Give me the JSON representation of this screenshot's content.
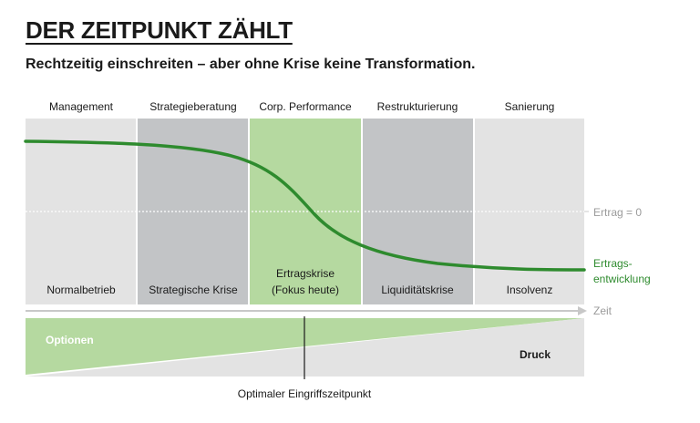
{
  "title": "DER ZEITPUNKT ZÄHLT",
  "subtitle": "Rechtzeitig einschreiten – aber ohne Krise keine Transformation.",
  "columns": [
    {
      "header": "Management",
      "footer": [
        "Normalbetrieb"
      ],
      "fill": "#e3e3e3"
    },
    {
      "header": "Strategieberatung",
      "footer": [
        "Strategische Krise"
      ],
      "fill": "#c2c4c6"
    },
    {
      "header": "Corp. Performance",
      "footer": [
        "Ertragskrise",
        "(Fokus heute)"
      ],
      "fill": "#b5d9a0"
    },
    {
      "header": "Restrukturierung",
      "footer": [
        "Liquiditätskrise"
      ],
      "fill": "#c2c4c6"
    },
    {
      "header": "Sanierung",
      "footer": [
        "Insolvenz"
      ],
      "fill": "#e3e3e3"
    }
  ],
  "labels": {
    "zero_line": "Ertrag = 0",
    "curve_line1": "Ertrags-",
    "curve_line2": "entwicklung",
    "time_axis": "Zeit",
    "options": "Optionen",
    "pressure": "Druck",
    "optimal_point": "Optimaler Eingriffszeitpunkt"
  },
  "colors": {
    "curve": "#2e8b2e",
    "options_wedge": "#b5d9a0",
    "pressure_wedge": "#e3e3e3",
    "axis": "#c8c8c8"
  }
}
